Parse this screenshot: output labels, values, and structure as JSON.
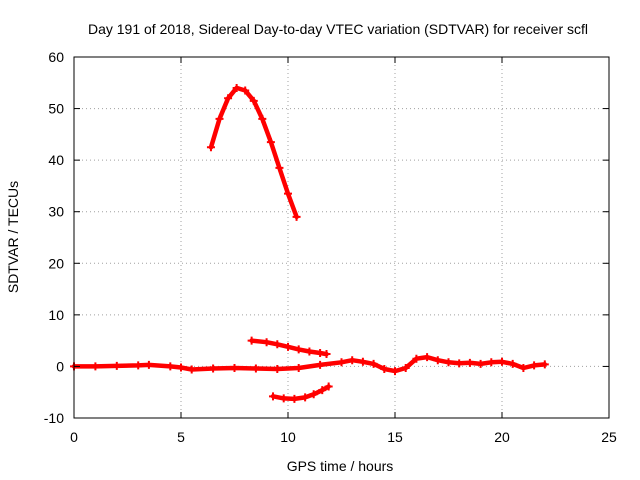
{
  "chart_data": {
    "type": "scatter",
    "title": "Day 191 of 2018, Sidereal Day-to-day VTEC variation (SDTVAR) for receiver scfl",
    "xlabel": "GPS time / hours",
    "ylabel": "SDTVAR / TECUs",
    "xlim": [
      0,
      25
    ],
    "ylim": [
      -10,
      60
    ],
    "xticks": [
      0,
      5,
      10,
      15,
      20,
      25
    ],
    "yticks": [
      -10,
      0,
      10,
      20,
      30,
      40,
      50,
      60
    ],
    "grid": true,
    "marker": "plus",
    "color": "#ff0000",
    "series": [
      {
        "points": [
          [
            0,
            0
          ],
          [
            1,
            0
          ],
          [
            2,
            0.1
          ],
          [
            3,
            0.2
          ],
          [
            3.5,
            0.3
          ],
          [
            4.5,
            0
          ],
          [
            5,
            -0.2
          ],
          [
            5.5,
            -0.6
          ],
          [
            6.5,
            -0.4
          ],
          [
            7.5,
            -0.3
          ],
          [
            8.5,
            -0.4
          ],
          [
            9.5,
            -0.5
          ],
          [
            10.5,
            -0.3
          ],
          [
            11.5,
            0.3
          ],
          [
            12.5,
            0.8
          ],
          [
            13,
            1.2
          ],
          [
            13.5,
            0.9
          ],
          [
            14,
            0.5
          ],
          [
            14.5,
            -0.5
          ],
          [
            15,
            -0.9
          ],
          [
            15.5,
            -0.3
          ],
          [
            16,
            1.5
          ],
          [
            16.5,
            1.8
          ],
          [
            17,
            1.2
          ],
          [
            17.5,
            0.8
          ],
          [
            18,
            0.6
          ],
          [
            18.5,
            0.7
          ],
          [
            19,
            0.5
          ],
          [
            19.5,
            0.8
          ],
          [
            20,
            0.9
          ],
          [
            20.5,
            0.5
          ],
          [
            21,
            -0.3
          ],
          [
            21.5,
            0.2
          ],
          [
            22,
            0.4
          ]
        ]
      },
      {
        "points": [
          [
            6.4,
            42.5
          ],
          [
            6.8,
            48
          ],
          [
            7.2,
            52
          ],
          [
            7.6,
            54
          ],
          [
            8,
            53.5
          ],
          [
            8.4,
            51.5
          ],
          [
            8.8,
            48
          ],
          [
            9.2,
            43.5
          ],
          [
            9.6,
            38.5
          ],
          [
            10,
            33.5
          ],
          [
            10.4,
            29
          ]
        ]
      },
      {
        "points": [
          [
            8.3,
            5
          ],
          [
            9,
            4.7
          ],
          [
            9.5,
            4.3
          ],
          [
            10,
            3.8
          ],
          [
            10.5,
            3.3
          ],
          [
            11,
            2.9
          ],
          [
            11.5,
            2.6
          ],
          [
            11.8,
            2.4
          ]
        ]
      },
      {
        "points": [
          [
            9.3,
            -5.8
          ],
          [
            9.8,
            -6.2
          ],
          [
            10.3,
            -6.3
          ],
          [
            10.8,
            -6
          ],
          [
            11.2,
            -5.4
          ],
          [
            11.6,
            -4.6
          ],
          [
            11.9,
            -3.9
          ]
        ]
      }
    ]
  }
}
